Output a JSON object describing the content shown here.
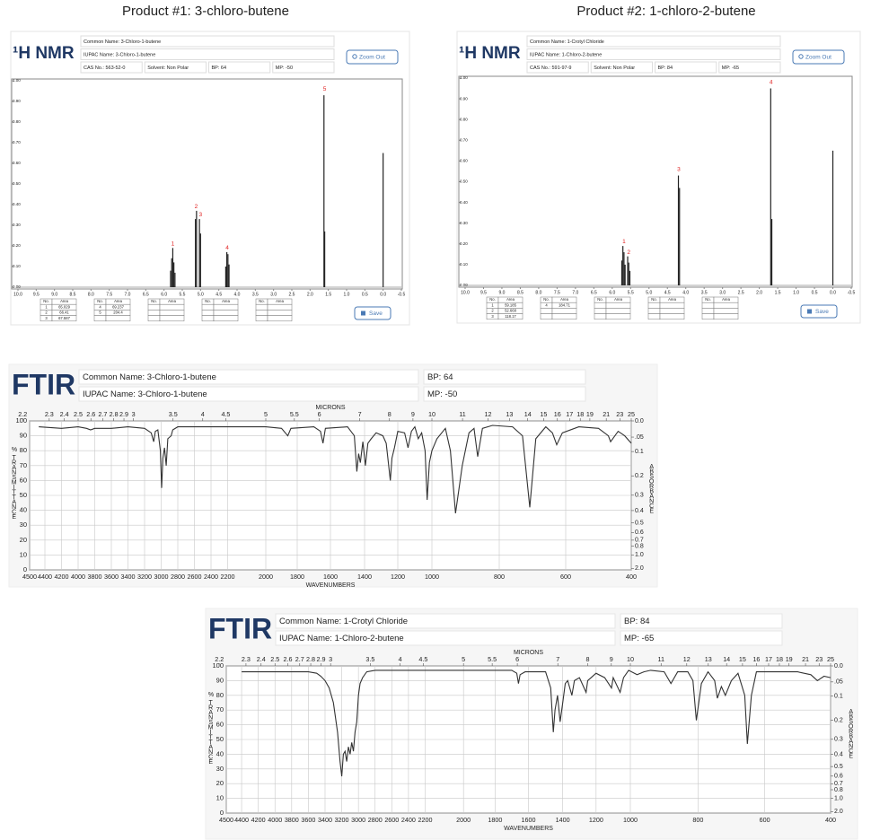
{
  "headings": [
    "Product #1: 3-chloro-butene",
    "Product #2: 1-chloro-2-butene"
  ],
  "chart_data": [
    {
      "type": "nmr",
      "title": "¹H NMR",
      "info": [
        [
          "Common Name: 3-Chloro-1-butene"
        ],
        [
          "IUPAC Name: 3-Chloro-1-butene"
        ],
        [
          "CAS No.: 563-52-0",
          "Solvent: Non Polar",
          "BP: 64",
          "MP: -50"
        ]
      ],
      "buttons": [
        "Zoom Out",
        "Save"
      ],
      "x": [
        5.82,
        5.79,
        5.76,
        5.73,
        5.7,
        5.14,
        5.11,
        5.03,
        5.0,
        4.31,
        4.28,
        4.25,
        4.22,
        1.62,
        1.6,
        0.0
      ],
      "values": [
        0.08,
        0.14,
        0.19,
        0.12,
        0.07,
        0.33,
        0.37,
        0.33,
        0.26,
        0.1,
        0.17,
        0.16,
        0.11,
        0.93,
        0.27,
        0.65
      ],
      "color": "#222222",
      "annotation_color": "#e02020",
      "annotations": [
        {
          "text": "1",
          "x": 5.76,
          "y": 0.21
        },
        {
          "text": "2",
          "x": 5.12,
          "y": 0.39
        },
        {
          "text": "3",
          "x": 5.0,
          "y": 0.35
        },
        {
          "text": "4",
          "x": 4.27,
          "y": 0.19
        },
        {
          "text": "5",
          "x": 1.6,
          "y": 0.96
        }
      ],
      "xlim": [
        10,
        -0.5
      ],
      "xticks": [
        {
          "value": 10,
          "label": "10.0"
        },
        9.5,
        {
          "value": 9,
          "label": "9.0"
        },
        8.5,
        {
          "value": 8,
          "label": "8.0"
        },
        7.5,
        {
          "value": 7,
          "label": "7.0"
        },
        6.5,
        {
          "value": 6,
          "label": "6.0"
        },
        5.5,
        {
          "value": 5,
          "label": "5.0"
        },
        4.5,
        {
          "value": 4,
          "label": "4.0"
        },
        3.5,
        {
          "value": 3,
          "label": "3.0"
        },
        2.5,
        {
          "value": 2,
          "label": "2.0"
        },
        1.5,
        {
          "value": 1,
          "label": "1.0"
        },
        0.5,
        {
          "value": 0,
          "label": "0.0"
        },
        -0.5
      ],
      "ylim": [
        0,
        1
      ],
      "yticks": [
        {
          "value": 0,
          "label": "0.00"
        },
        {
          "value": 0.1,
          "label": "0.10"
        },
        {
          "value": 0.2,
          "label": "0.20"
        },
        {
          "value": 0.3,
          "label": "0.30"
        },
        {
          "value": 0.4,
          "label": "0.40"
        },
        {
          "value": 0.5,
          "label": "0.50"
        },
        {
          "value": 0.6,
          "label": "0.60"
        },
        {
          "value": 0.7,
          "label": "0.70"
        },
        {
          "value": 0.8,
          "label": "0.80"
        },
        {
          "value": 0.9,
          "label": "0.90"
        },
        {
          "value": 1,
          "label": "1.00"
        }
      ],
      "tables": [
        {
          "header": [
            "No.",
            "Area"
          ],
          "rows": [
            [
              "1",
              "65.029"
            ],
            [
              "2",
              "66.41"
            ],
            [
              "3",
              "67.587"
            ]
          ]
        },
        {
          "header": [
            "No.",
            "Area"
          ],
          "rows": [
            [
              "4",
              "69.237"
            ],
            [
              "5",
              "204.4"
            ]
          ]
        },
        {
          "header": [
            "No.",
            "Area"
          ],
          "rows": []
        },
        {
          "header": [
            "No.",
            "Area"
          ],
          "rows": []
        },
        {
          "header": [
            "No.",
            "Area"
          ],
          "rows": []
        }
      ]
    },
    {
      "type": "nmr",
      "title": "¹H NMR",
      "info": [
        [
          "Common Name: 1-Crotyl Chloride"
        ],
        [
          "IUPAC Name: 1-Chloro-2-butene"
        ],
        [
          "CAS No.: 591-97-9",
          "Solvent: Non Polar",
          "BP: 84",
          "MP: -65"
        ]
      ],
      "buttons": [
        "Zoom Out",
        "Save"
      ],
      "x": [
        5.74,
        5.71,
        5.68,
        5.65,
        5.58,
        5.55,
        5.52,
        4.2,
        4.17,
        1.69,
        1.66,
        0.0
      ],
      "values": [
        0.12,
        0.19,
        0.16,
        0.1,
        0.14,
        0.11,
        0.07,
        0.53,
        0.47,
        0.95,
        0.32,
        0.65
      ],
      "color": "#222222",
      "annotation_color": "#e02020",
      "annotations": [
        {
          "text": "1",
          "x": 5.68,
          "y": 0.21
        },
        {
          "text": "2",
          "x": 5.55,
          "y": 0.16
        },
        {
          "text": "3",
          "x": 4.19,
          "y": 0.56
        },
        {
          "text": "4",
          "x": 1.68,
          "y": 0.98
        }
      ],
      "xlim": [
        10,
        -0.5
      ],
      "xticks": [
        {
          "value": 10,
          "label": "10.0"
        },
        9.5,
        {
          "value": 9,
          "label": "9.0"
        },
        8.5,
        {
          "value": 8,
          "label": "8.0"
        },
        7.5,
        {
          "value": 7,
          "label": "7.0"
        },
        6.5,
        {
          "value": 6,
          "label": "6.0"
        },
        5.5,
        {
          "value": 5,
          "label": "5.0"
        },
        4.5,
        {
          "value": 4,
          "label": "4.0"
        },
        3.5,
        {
          "value": 3,
          "label": "3.0"
        },
        2.5,
        {
          "value": 2,
          "label": "2.0"
        },
        1.5,
        {
          "value": 1,
          "label": "1.0"
        },
        0.5,
        {
          "value": 0,
          "label": "0.0"
        },
        -0.5
      ],
      "ylim": [
        0,
        1
      ],
      "yticks": [
        {
          "value": 0,
          "label": "0.00"
        },
        {
          "value": 0.1,
          "label": "0.10"
        },
        {
          "value": 0.2,
          "label": "0.20"
        },
        {
          "value": 0.3,
          "label": "0.30"
        },
        {
          "value": 0.4,
          "label": "0.40"
        },
        {
          "value": 0.5,
          "label": "0.50"
        },
        {
          "value": 0.6,
          "label": "0.60"
        },
        {
          "value": 0.7,
          "label": "0.70"
        },
        {
          "value": 0.8,
          "label": "0.80"
        },
        {
          "value": 0.9,
          "label": "0.90"
        },
        {
          "value": 1,
          "label": "1.00"
        }
      ],
      "tables": [
        {
          "header": [
            "No.",
            "Area"
          ],
          "rows": [
            [
              "1",
              "59.185"
            ],
            [
              "2",
              "52.668"
            ],
            [
              "3",
              "118.17"
            ]
          ]
        },
        {
          "header": [
            "No.",
            "Area"
          ],
          "rows": [
            [
              "4",
              "184.71"
            ]
          ]
        },
        {
          "header": [
            "No.",
            "Area"
          ],
          "rows": []
        },
        {
          "header": [
            "No.",
            "Area"
          ],
          "rows": []
        },
        {
          "header": [
            "No.",
            "Area"
          ],
          "rows": []
        }
      ]
    },
    {
      "type": "ftir",
      "title": "FTIR",
      "info": [
        [
          "Common Name: 3-Chloro-1-butene",
          "BP: 64"
        ],
        [
          "IUPAC Name: 3-Chloro-1-butene",
          "MP: -50"
        ]
      ],
      "xlabel": "WAVENUMBERS",
      "x2label": "MICRONS",
      "ylabel_unit": "%",
      "ylabel": "TRANSMITTANCE",
      "y2label": "ABSORBANCE",
      "color": "#333333",
      "grid": true,
      "x": [
        4440,
        4200,
        4000,
        3900,
        3850,
        3800,
        3600,
        3400,
        3200,
        3120,
        3090,
        3070,
        3040,
        3010,
        2995,
        2980,
        2960,
        2940,
        2920,
        2880,
        2860,
        2800,
        2600,
        2400,
        2200,
        2000,
        1900,
        1860,
        1840,
        1700,
        1660,
        1645,
        1630,
        1500,
        1460,
        1445,
        1435,
        1425,
        1410,
        1395,
        1380,
        1360,
        1330,
        1290,
        1270,
        1245,
        1235,
        1220,
        1200,
        1160,
        1140,
        1120,
        1100,
        1080,
        1060,
        1040,
        1028,
        1015,
        1000,
        985,
        960,
        945,
        930,
        910,
        890,
        875,
        864,
        850,
        820,
        760,
        730,
        708,
        690,
        660,
        640,
        627,
        610,
        560,
        500,
        470,
        463,
        440,
        420,
        400
      ],
      "values": [
        96,
        95,
        96,
        95,
        94,
        95,
        95,
        96,
        95,
        92,
        86,
        93,
        94,
        80,
        55,
        75,
        82,
        70,
        88,
        90,
        94,
        96,
        96,
        96,
        96,
        96,
        95,
        90,
        95,
        96,
        93,
        85,
        95,
        96,
        90,
        66,
        78,
        72,
        86,
        70,
        85,
        88,
        92,
        90,
        85,
        60,
        75,
        82,
        93,
        92,
        82,
        93,
        96,
        88,
        92,
        80,
        47,
        72,
        80,
        88,
        95,
        80,
        38,
        70,
        92,
        95,
        76,
        95,
        97,
        96,
        90,
        42,
        88,
        96,
        92,
        84,
        92,
        96,
        95,
        90,
        86,
        93,
        90,
        85
      ],
      "xlim": [
        4500,
        400
      ],
      "xticks": [
        4500,
        4400,
        4200,
        4000,
        3800,
        3600,
        3400,
        3200,
        3000,
        2800,
        2600,
        2400,
        2200,
        2000,
        1800,
        1600,
        1400,
        1200,
        1000,
        800,
        600,
        400
      ],
      "x2ticks": [
        2.2,
        2.3,
        2.4,
        2.5,
        2.6,
        2.7,
        2.8,
        2.9,
        3,
        3.5,
        4,
        4.5,
        5,
        5.5,
        6,
        7,
        8,
        9,
        10,
        11,
        12,
        13,
        14,
        15,
        16,
        17,
        18,
        19,
        21,
        23,
        25
      ],
      "ylim": [
        0,
        100
      ],
      "yticks": [
        0,
        10,
        20,
        30,
        40,
        50,
        60,
        70,
        80,
        90,
        100
      ],
      "y2ticks": [
        {
          "value": 0,
          "label": "0.0"
        },
        {
          "value": 0.05,
          "label": ".05"
        },
        0.1,
        0.2,
        0.3,
        0.4,
        0.5,
        0.6,
        0.7,
        0.8,
        {
          "value": 1,
          "label": "1.0"
        },
        {
          "value": 2,
          "label": "2.0"
        }
      ]
    },
    {
      "type": "ftir",
      "title": "FTIR",
      "info": [
        [
          "Common Name: 1-Crotyl Chloride",
          "BP: 84"
        ],
        [
          "IUPAC Name: 1-Chloro-2-butene",
          "MP: -65"
        ]
      ],
      "xlabel": "WAVENUMBERS",
      "x2label": "MICRONS",
      "ylabel_unit": "%",
      "ylabel": "TRANSMITTANCE",
      "y2label": "ABSORBANCE",
      "color": "#333333",
      "grid": true,
      "x": [
        4400,
        4000,
        3600,
        3500,
        3450,
        3400,
        3350,
        3300,
        3250,
        3220,
        3200,
        3180,
        3160,
        3140,
        3120,
        3100,
        3080,
        3060,
        3040,
        3020,
        3000,
        2980,
        2950,
        2900,
        2800,
        2400,
        2000,
        1800,
        1700,
        1670,
        1660,
        1650,
        1620,
        1500,
        1470,
        1455,
        1445,
        1430,
        1415,
        1400,
        1385,
        1370,
        1345,
        1330,
        1300,
        1260,
        1250,
        1200,
        1150,
        1110,
        1100,
        1060,
        1040,
        1010,
        980,
        960,
        940,
        900,
        880,
        860,
        830,
        815,
        805,
        790,
        770,
        750,
        742,
        730,
        718,
        700,
        680,
        660,
        652,
        640,
        625,
        500,
        460,
        440,
        420,
        400
      ],
      "values": [
        96,
        96,
        96,
        95,
        93,
        90,
        85,
        75,
        55,
        35,
        25,
        40,
        42,
        35,
        45,
        40,
        48,
        42,
        55,
        62,
        80,
        88,
        92,
        96,
        97,
        97,
        97,
        97,
        97,
        95,
        88,
        94,
        96,
        96,
        85,
        55,
        70,
        80,
        62,
        75,
        88,
        90,
        80,
        90,
        92,
        82,
        90,
        95,
        92,
        85,
        92,
        82,
        92,
        97,
        94,
        96,
        97,
        96,
        88,
        96,
        96,
        90,
        63,
        88,
        96,
        90,
        78,
        86,
        80,
        90,
        95,
        80,
        47,
        80,
        96,
        96,
        94,
        90,
        93,
        92
      ],
      "xlim": [
        4500,
        400
      ],
      "xticks": [
        4500,
        4400,
        4200,
        4000,
        3800,
        3600,
        3400,
        3200,
        3000,
        2800,
        2600,
        2400,
        2200,
        2000,
        1800,
        1600,
        1400,
        1200,
        1000,
        800,
        600,
        400
      ],
      "x2ticks": [
        2.2,
        2.3,
        2.4,
        2.5,
        2.6,
        2.7,
        2.8,
        2.9,
        3,
        3.5,
        4,
        4.5,
        5,
        5.5,
        6,
        7,
        8,
        9,
        10,
        11,
        12,
        13,
        14,
        15,
        16,
        17,
        18,
        19,
        21,
        23,
        25
      ],
      "ylim": [
        0,
        100
      ],
      "yticks": [
        0,
        10,
        20,
        30,
        40,
        50,
        60,
        70,
        80,
        90,
        100
      ],
      "y2ticks": [
        {
          "value": 0,
          "label": "0.0"
        },
        {
          "value": 0.05,
          "label": ".05"
        },
        0.1,
        0.2,
        0.3,
        0.4,
        0.5,
        0.6,
        0.7,
        0.8,
        {
          "value": 1,
          "label": "1.0"
        },
        {
          "value": 2,
          "label": "2.0"
        }
      ]
    }
  ]
}
